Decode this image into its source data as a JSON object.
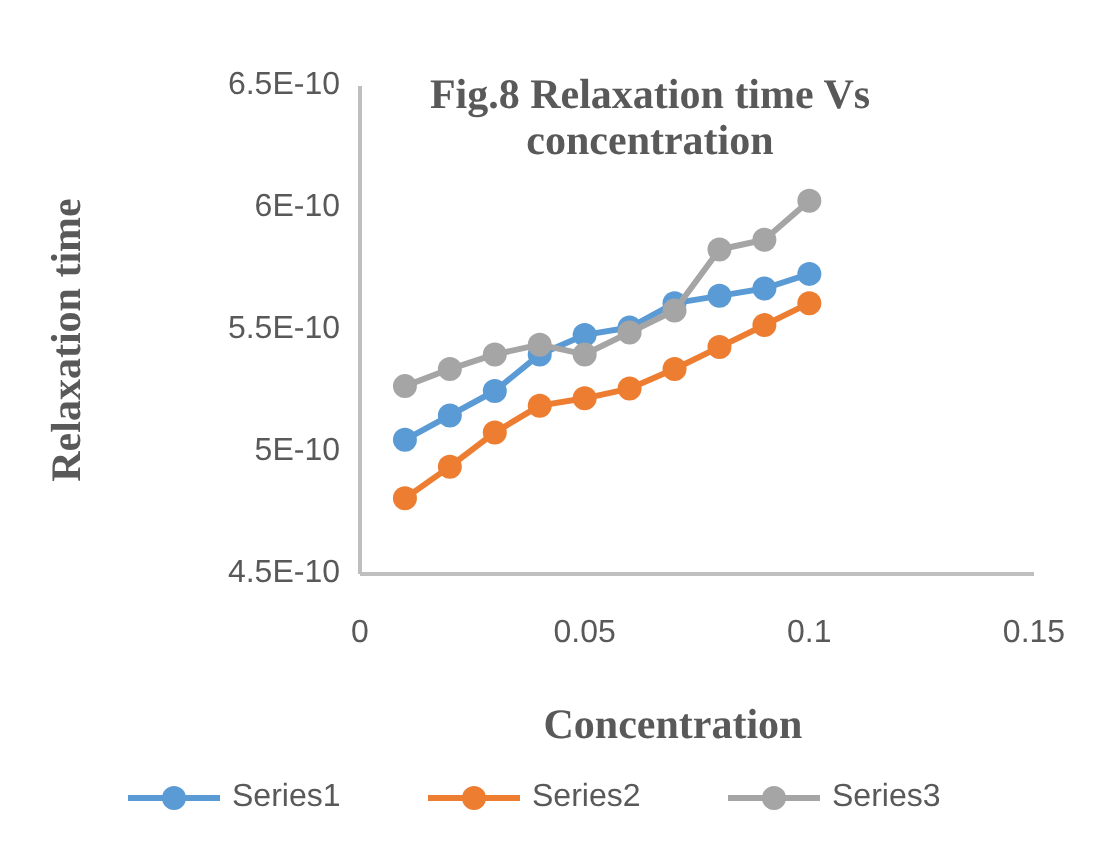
{
  "chart_data": {
    "type": "line",
    "title": "Fig.8 Relaxation time Vs concentration",
    "xlabel": "Concentration",
    "ylabel": "Relaxation time",
    "x": [
      0.01,
      0.02,
      0.03,
      0.04,
      0.05,
      0.06,
      0.07,
      0.08,
      0.09,
      0.1
    ],
    "series": [
      {
        "name": "Series1",
        "color": "#5b9bd5",
        "values": [
          5.05e-10,
          5.15e-10,
          5.25e-10,
          5.4e-10,
          5.48e-10,
          5.51e-10,
          5.61e-10,
          5.64e-10,
          5.67e-10,
          5.73e-10
        ]
      },
      {
        "name": "Series2",
        "color": "#ed7d31",
        "values": [
          4.81e-10,
          4.94e-10,
          5.08e-10,
          5.19e-10,
          5.22e-10,
          5.26e-10,
          5.34e-10,
          5.43e-10,
          5.52e-10,
          5.61e-10
        ]
      },
      {
        "name": "Series3",
        "color": "#a5a5a5",
        "values": [
          5.27e-10,
          5.34e-10,
          5.4e-10,
          5.44e-10,
          5.4e-10,
          5.49e-10,
          5.58e-10,
          5.83e-10,
          5.87e-10,
          6.03e-10
        ]
      }
    ],
    "xlim": [
      0,
      0.15
    ],
    "xticks": [
      0,
      0.05,
      0.1,
      0.15
    ],
    "ylim": [
      4.5e-10,
      6.5e-10
    ],
    "yticks": [
      {
        "value": 4.5e-10,
        "label": "4.5E-10"
      },
      {
        "value": 5e-10,
        "label": "5E-10"
      },
      {
        "value": 5.5e-10,
        "label": "5.5E-10"
      },
      {
        "value": 6e-10,
        "label": "6E-10"
      },
      {
        "value": 6.5e-10,
        "label": "6.5E-10"
      }
    ],
    "grid": false,
    "legend": "bottom",
    "marker": "circle",
    "line_style": "solid"
  }
}
